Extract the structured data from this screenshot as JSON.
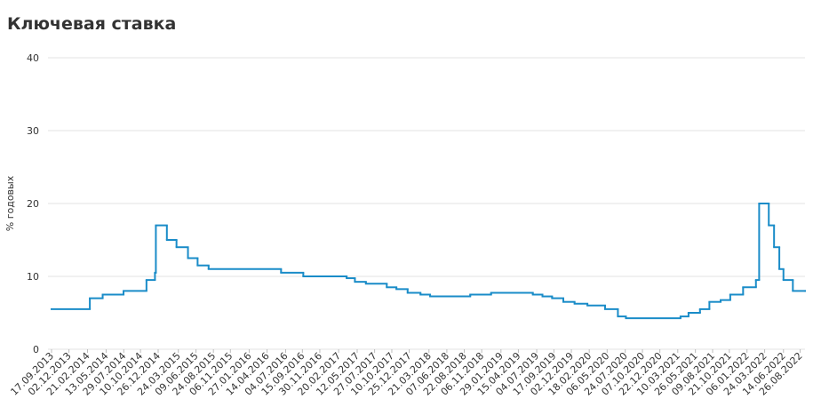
{
  "chart_data": {
    "type": "line",
    "step": true,
    "title": "Ключевая ставка",
    "ylabel": "% годовых",
    "x": [
      "17.09.2013",
      "03.03.2014",
      "28.04.2014",
      "28.07.2014",
      "05.11.2014",
      "12.12.2014",
      "16.12.2014",
      "02.02.2015",
      "16.03.2015",
      "05.05.2015",
      "16.06.2015",
      "03.08.2015",
      "14.06.2016",
      "19.09.2016",
      "27.03.2017",
      "02.05.2017",
      "19.06.2017",
      "18.09.2017",
      "30.10.2017",
      "18.12.2017",
      "12.02.2018",
      "26.03.2018",
      "17.09.2018",
      "17.12.2018",
      "17.06.2019",
      "29.07.2019",
      "09.09.2019",
      "28.10.2019",
      "16.12.2019",
      "10.02.2020",
      "27.04.2020",
      "22.06.2020",
      "27.07.2020",
      "22.03.2021",
      "26.04.2021",
      "15.06.2021",
      "26.07.2021",
      "13.09.2021",
      "25.10.2021",
      "20.12.2021",
      "14.02.2022",
      "28.02.2022",
      "11.04.2022",
      "04.05.2022",
      "27.05.2022",
      "14.06.2022",
      "25.07.2022",
      "16.09.2022"
    ],
    "series": [
      {
        "name": "Ключевая ставка",
        "color": "#1a8cc8",
        "values": [
          5.5,
          7,
          7.5,
          8,
          9.5,
          10.5,
          17,
          15,
          14,
          12.5,
          11.5,
          11,
          10.5,
          10,
          9.75,
          9.25,
          9,
          8.5,
          8.25,
          7.75,
          7.5,
          7.25,
          7.5,
          7.75,
          7.5,
          7.25,
          7,
          6.5,
          6.25,
          6,
          5.5,
          4.5,
          4.25,
          4.5,
          5,
          5.5,
          6.5,
          6.75,
          7.5,
          8.5,
          9.5,
          20,
          17,
          14,
          11,
          9.5,
          8,
          8
        ]
      }
    ],
    "xlim": [
      "17.09.2013",
      "16.09.2022"
    ],
    "xticks": [
      "17.09.2013",
      "02.12.2013",
      "21.02.2014",
      "13.05.2014",
      "29.07.2014",
      "10.10.2014",
      "26.12.2014",
      "24.03.2015",
      "09.06.2015",
      "24.08.2015",
      "06.11.2015",
      "27.01.2016",
      "14.04.2016",
      "04.07.2016",
      "15.09.2016",
      "30.11.2016",
      "20.02.2017",
      "12.05.2017",
      "27.07.2017",
      "10.10.2017",
      "25.12.2017",
      "21.03.2018",
      "07.06.2018",
      "22.08.2018",
      "06.11.2018",
      "29.01.2019",
      "15.04.2019",
      "04.07.2019",
      "17.09.2019",
      "02.12.2019",
      "18.02.2020",
      "06.05.2020",
      "24.07.2020",
      "07.10.2020",
      "22.12.2020",
      "10.03.2021",
      "26.05.2021",
      "09.08.2021",
      "21.10.2021",
      "06.01.2022",
      "24.03.2022",
      "14.06.2022",
      "26.08.2022"
    ],
    "ylim": [
      0,
      40
    ],
    "yticks": [
      0,
      10,
      20,
      30,
      40
    ],
    "grid": true
  }
}
